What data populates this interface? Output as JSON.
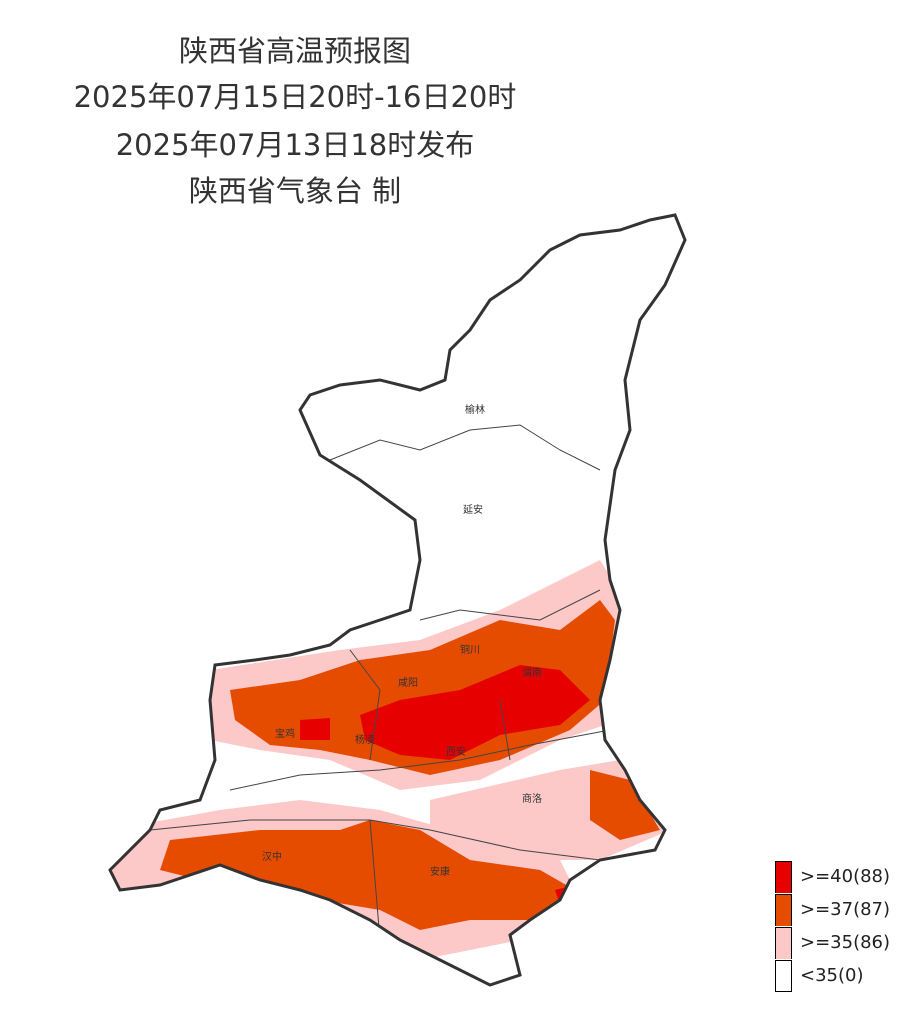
{
  "header": {
    "title": "陕西省高温预报图",
    "period": "2025年07月15日20时-16日20时",
    "issued": "2025年07月13日18时发布",
    "producer": "陕西省气象台 制"
  },
  "cities": [
    "榆林",
    "延安",
    "铜川",
    "咸阳",
    "渭南",
    "宝鸡",
    "杨凌",
    "西安",
    "商洛",
    "汉中",
    "安康"
  ],
  "legend": [
    {
      "label": ">=40(88)",
      "color": "#e60000"
    },
    {
      "label": ">=37(87)",
      "color": "#e64c00"
    },
    {
      "label": ">=35(86)",
      "color": "#fcc8c8"
    },
    {
      "label": "<35(0)",
      "color": "#ffffff"
    }
  ]
}
